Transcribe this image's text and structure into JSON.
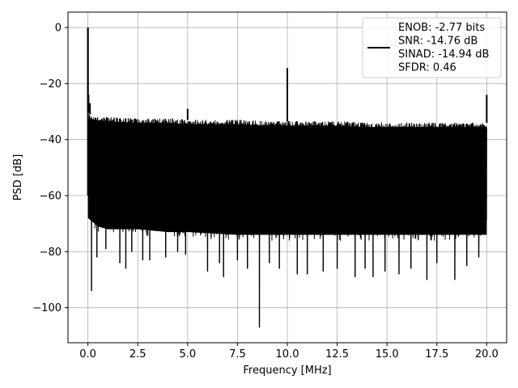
{
  "chart_data": {
    "type": "line",
    "title": "",
    "xlabel": "Frequency [MHz]",
    "ylabel": "PSD [dB]",
    "xlim": [
      -1.0,
      21.0
    ],
    "ylim": [
      -112.5,
      5.5
    ],
    "xticks": [
      0.0,
      2.5,
      5.0,
      7.5,
      10.0,
      12.5,
      15.0,
      17.5,
      20.0
    ],
    "xtick_labels": [
      "0.0",
      "2.5",
      "5.0",
      "7.5",
      "10.0",
      "12.5",
      "15.0",
      "17.5",
      "20.0"
    ],
    "yticks": [
      0,
      -20,
      -40,
      -60,
      -80,
      -100
    ],
    "ytick_labels": [
      "0",
      "−20",
      "−40",
      "−60",
      "−80",
      "−100"
    ],
    "grid": true,
    "legend_position": "top-right",
    "legend": [
      "ENOB: -2.77 bits",
      "SNR: -14.76 dB",
      "SINAD: -14.94 dB",
      "SFDR: 0.46"
    ],
    "series": [
      {
        "color": "#000000",
        "envelope": {
          "top_x": [
            0.0,
            0.1,
            0.3,
            0.5,
            1.0,
            2.5,
            4.0,
            5.0,
            6.0,
            7.5,
            9.0,
            10.0,
            11.0,
            12.5,
            14.0,
            15.0,
            16.0,
            17.5,
            19.0,
            20.0
          ],
          "top_y": [
            -30,
            -31,
            -32,
            -31.5,
            -32,
            -32.5,
            -32.5,
            -33,
            -33,
            -33,
            -33.5,
            -33.5,
            -33.5,
            -33.5,
            -34,
            -34,
            -34,
            -34,
            -34,
            -34
          ],
          "bottom_x": [
            0.0,
            0.5,
            1.0,
            2.5,
            4.0,
            5.0,
            7.5,
            10.0,
            12.5,
            15.0,
            17.5,
            20.0
          ],
          "bottom_y": [
            -70,
            -73,
            -74,
            -74,
            -75,
            -75,
            -76,
            -76,
            -76,
            -76,
            -76,
            -76
          ]
        },
        "spikes": [
          {
            "x": 0.0,
            "y": 0.0
          },
          {
            "x": 0.03,
            "y": -24
          },
          {
            "x": 0.1,
            "y": -27
          },
          {
            "x": 5.0,
            "y": -29
          },
          {
            "x": 10.0,
            "y": -14.5
          },
          {
            "x": 20.0,
            "y": -24
          }
        ],
        "dips": [
          {
            "x": 0.18,
            "y": -94
          },
          {
            "x": 0.45,
            "y": -82
          },
          {
            "x": 0.9,
            "y": -79
          },
          {
            "x": 1.6,
            "y": -84
          },
          {
            "x": 1.9,
            "y": -86
          },
          {
            "x": 2.2,
            "y": -80
          },
          {
            "x": 2.75,
            "y": -83
          },
          {
            "x": 3.1,
            "y": -83
          },
          {
            "x": 3.9,
            "y": -82
          },
          {
            "x": 4.5,
            "y": -80
          },
          {
            "x": 4.9,
            "y": -81
          },
          {
            "x": 6.0,
            "y": -87
          },
          {
            "x": 6.6,
            "y": -84
          },
          {
            "x": 6.8,
            "y": -89
          },
          {
            "x": 7.5,
            "y": -83
          },
          {
            "x": 8.0,
            "y": -86
          },
          {
            "x": 8.6,
            "y": -107
          },
          {
            "x": 9.1,
            "y": -84
          },
          {
            "x": 9.6,
            "y": -86
          },
          {
            "x": 10.5,
            "y": -88
          },
          {
            "x": 11.0,
            "y": -88
          },
          {
            "x": 11.8,
            "y": -87
          },
          {
            "x": 12.5,
            "y": -86
          },
          {
            "x": 13.4,
            "y": -89
          },
          {
            "x": 13.9,
            "y": -86
          },
          {
            "x": 14.3,
            "y": -89
          },
          {
            "x": 14.9,
            "y": -87
          },
          {
            "x": 15.6,
            "y": -88
          },
          {
            "x": 16.2,
            "y": -86
          },
          {
            "x": 17.0,
            "y": -90
          },
          {
            "x": 17.5,
            "y": -84
          },
          {
            "x": 18.4,
            "y": -90
          },
          {
            "x": 19.0,
            "y": -85
          },
          {
            "x": 19.6,
            "y": -82
          }
        ]
      }
    ]
  }
}
